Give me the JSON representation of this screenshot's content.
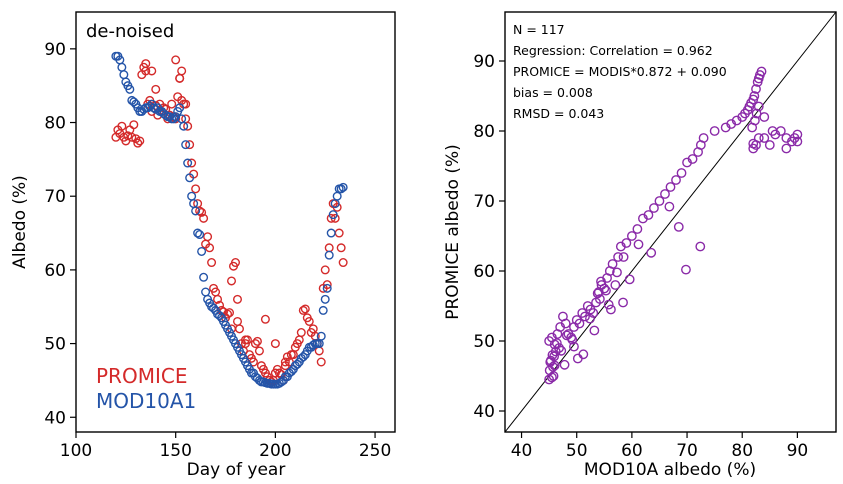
{
  "chart_data": [
    {
      "type": "scatter",
      "panel_title": "de-noised",
      "xlabel": "Day of year",
      "ylabel": "Albedo (%)",
      "xlim": [
        100,
        260
      ],
      "ylim": [
        38,
        95
      ],
      "xticks": [
        100,
        150,
        200,
        250
      ],
      "yticks": [
        40,
        50,
        60,
        70,
        80,
        90
      ],
      "legend_position": "bottom-left",
      "series": [
        {
          "name": "PROMICE",
          "color": "#d42a2a",
          "x": [
            120,
            121,
            122,
            123,
            124,
            125,
            126,
            127,
            128,
            129,
            130,
            131,
            132,
            133,
            134,
            135,
            136,
            137,
            138,
            139,
            140,
            141,
            142,
            143,
            144,
            145,
            146,
            147,
            148,
            149,
            150,
            151,
            152,
            153,
            154,
            155,
            156,
            157,
            158,
            159,
            160,
            161,
            162,
            163,
            164,
            165,
            166,
            167,
            168,
            169,
            170,
            171,
            172,
            173,
            174,
            175,
            176,
            177,
            178,
            179,
            180,
            181,
            182,
            183,
            184,
            185,
            186,
            187,
            188,
            189,
            190,
            191,
            192,
            193,
            194,
            195,
            196,
            197,
            198,
            199,
            200,
            201,
            202,
            203,
            204,
            205,
            206,
            207,
            208,
            209,
            210,
            211,
            212,
            213,
            214,
            215,
            216,
            217,
            218,
            219,
            220,
            221,
            222,
            223,
            224,
            225,
            226,
            227,
            228,
            229,
            230,
            231,
            232,
            233,
            234,
            135,
            138,
            140,
            150,
            152,
            153,
            155,
            178,
            181,
            185,
            195,
            200,
            205
          ],
          "y": [
            78,
            79,
            78.5,
            79.5,
            78,
            77.5,
            78.2,
            79,
            78,
            79.7,
            77.8,
            77.2,
            77.5,
            86.5,
            87.5,
            87,
            82.5,
            83,
            81.5,
            82,
            82.3,
            81,
            82.5,
            81.5,
            82,
            81.8,
            80.5,
            81,
            82.5,
            80.8,
            80.5,
            83.5,
            86,
            83,
            82.5,
            80.5,
            79.5,
            77,
            74.5,
            73,
            71,
            69,
            68,
            67.8,
            67,
            63.5,
            64.5,
            63,
            61,
            57.5,
            57,
            56,
            55.2,
            54.5,
            54.3,
            53.5,
            54,
            54.2,
            58.5,
            60.5,
            61,
            56,
            52,
            50,
            49,
            50.5,
            50.5,
            48.5,
            48,
            47.5,
            50,
            50.3,
            49,
            47,
            46.5,
            46,
            45.5,
            45,
            44.8,
            45,
            46,
            46.5,
            46,
            45.8,
            45,
            47.5,
            48.2,
            47.5,
            48.5,
            48.5,
            49.5,
            50,
            50.5,
            51.5,
            54.5,
            54.7,
            53.5,
            53,
            51.5,
            52,
            51,
            50,
            49,
            47.5,
            57.5,
            60,
            58,
            63,
            67,
            69,
            67,
            68.5,
            65,
            63,
            61,
            88,
            87,
            84.5,
            88.5,
            86,
            87,
            82.5,
            52,
            53,
            50,
            53.3,
            50,
            47
          ],
          "size": 3.8
        },
        {
          "name": "MOD10A1",
          "color": "#2454a8",
          "x": [
            120,
            121,
            122,
            123,
            124,
            125,
            126,
            127,
            128,
            129,
            130,
            131,
            132,
            133,
            134,
            135,
            136,
            137,
            138,
            139,
            140,
            141,
            142,
            143,
            144,
            145,
            146,
            147,
            148,
            149,
            150,
            151,
            152,
            153,
            154,
            155,
            156,
            157,
            158,
            159,
            160,
            161,
            162,
            163,
            164,
            165,
            166,
            167,
            168,
            169,
            170,
            171,
            172,
            173,
            174,
            175,
            176,
            177,
            178,
            179,
            180,
            181,
            182,
            183,
            184,
            185,
            186,
            187,
            188,
            189,
            190,
            191,
            192,
            193,
            194,
            195,
            196,
            197,
            198,
            199,
            200,
            201,
            202,
            203,
            204,
            205,
            206,
            207,
            208,
            209,
            210,
            211,
            212,
            213,
            214,
            215,
            216,
            217,
            218,
            219,
            220,
            221,
            222,
            223,
            224,
            225,
            226,
            227,
            228,
            229,
            230,
            231,
            232,
            233,
            234
          ],
          "y": [
            89,
            89,
            88.5,
            87.5,
            86.5,
            85.5,
            85,
            84.5,
            83,
            82.8,
            82.5,
            82,
            81.5,
            81.5,
            81.8,
            82,
            82,
            82.2,
            82.5,
            82,
            81.8,
            82,
            81.5,
            81.5,
            81.2,
            81,
            80.8,
            80.8,
            80.5,
            80.5,
            80.8,
            81.5,
            82,
            80.5,
            79.5,
            77,
            74.5,
            72.5,
            70,
            69,
            68,
            65,
            64.8,
            62.5,
            59,
            57,
            56,
            55.5,
            55,
            54.8,
            54.5,
            54,
            53.8,
            53.5,
            53,
            52.5,
            52,
            51.5,
            51,
            50.5,
            50,
            49.5,
            49,
            48.5,
            48,
            47.5,
            47,
            46.5,
            46,
            46,
            45.5,
            45.3,
            45,
            44.8,
            44.8,
            44.7,
            44.6,
            44.6,
            44.5,
            44.5,
            44.5,
            44.5,
            44.6,
            44.8,
            45,
            45.5,
            45.5,
            46,
            46.2,
            46.5,
            47,
            47.2,
            47.5,
            48,
            48.2,
            48.5,
            49,
            49.5,
            49.5,
            49.8,
            50,
            50,
            50,
            51,
            54.5,
            56,
            57.5,
            62,
            65,
            67.5,
            69,
            70,
            71,
            71,
            71.2
          ],
          "size": 3.8
        }
      ]
    },
    {
      "type": "scatter",
      "xlabel": "MOD10A albedo (%)",
      "ylabel": "PROMICE albedo (%)",
      "xlim": [
        37,
        97
      ],
      "ylim": [
        37,
        97
      ],
      "xticks": [
        40,
        50,
        60,
        70,
        80,
        90
      ],
      "yticks": [
        40,
        50,
        60,
        70,
        80,
        90
      ],
      "annotations": [
        "N = 117",
        "Regression: Correlation = 0.962",
        "PROMICE = MODIS*0.872 + 0.090",
        "bias = 0.008",
        "RMSD = 0.043"
      ],
      "line": {
        "type": "1:1",
        "x": [
          37,
          97
        ],
        "y": [
          37,
          97
        ]
      },
      "series": [
        {
          "color": "#8a2aa8",
          "x": [
            45,
            45.5,
            45.8,
            46,
            45.2,
            45.6,
            46.2,
            46.8,
            45,
            45.5,
            46,
            46.5,
            47,
            47.5,
            48,
            48.5,
            49,
            49.5,
            50,
            50.5,
            51,
            51.5,
            52,
            52.5,
            53,
            53.5,
            54,
            54.2,
            54.5,
            55,
            55.5,
            56,
            56.5,
            57,
            57.5,
            58,
            58.5,
            59,
            60,
            61,
            62,
            63,
            64,
            65,
            66,
            67,
            68,
            69,
            70,
            71,
            72,
            72.5,
            73,
            75,
            77,
            78,
            79,
            80,
            80.5,
            81,
            81.3,
            81.6,
            82,
            82.2,
            82.5,
            82.8,
            83,
            83.2,
            83.5,
            84,
            85,
            86,
            87,
            88,
            89,
            90,
            82,
            82,
            82.5,
            83,
            81.8,
            82.3,
            82.6,
            83,
            84,
            85.5,
            88,
            89.5,
            90,
            45.3,
            45.7,
            46.4,
            47.2,
            48.2,
            49.5,
            50.2,
            51.2,
            52.4,
            53.2,
            54.4,
            55.3,
            56.2,
            57.3,
            58.4,
            59.6,
            61.2,
            63.5,
            66.8,
            68.5,
            69.8,
            72.4,
            45.1,
            45.9,
            47.8,
            49.2,
            53.8,
            55.8
          ],
          "y": [
            44.5,
            44.8,
            45,
            46.5,
            47,
            48,
            48.5,
            49,
            50,
            50.5,
            49.5,
            51,
            52,
            53.5,
            52.5,
            51,
            50.5,
            52,
            53,
            52.5,
            54,
            53.5,
            55,
            54.5,
            54,
            55.5,
            57,
            56,
            58,
            57.5,
            59,
            60,
            61,
            58,
            62,
            63.5,
            62,
            64,
            65,
            66,
            67.5,
            68,
            69,
            70,
            71,
            72,
            73,
            74,
            75.5,
            76,
            77,
            78,
            79,
            80,
            80.5,
            81,
            81.5,
            82,
            82.5,
            83,
            83.5,
            84,
            84.5,
            85,
            86,
            87,
            87.5,
            88,
            88.5,
            79,
            78,
            79.5,
            80,
            79,
            78.5,
            78.5,
            77.5,
            78.2,
            78,
            79,
            80.5,
            81.5,
            82.5,
            83.5,
            82,
            80,
            77.5,
            79,
            79.5,
            47.2,
            46.3,
            49.7,
            48.6,
            50.8,
            49.2,
            47.5,
            48.1,
            53.2,
            51.5,
            58.5,
            57.2,
            54.5,
            59.8,
            55.5,
            58.8,
            63.8,
            62.6,
            69.2,
            66.3,
            60.2,
            63.5,
            45.8,
            47.8,
            46.6,
            50.2,
            56.8,
            55.2
          ],
          "size": 4.2
        }
      ]
    }
  ]
}
